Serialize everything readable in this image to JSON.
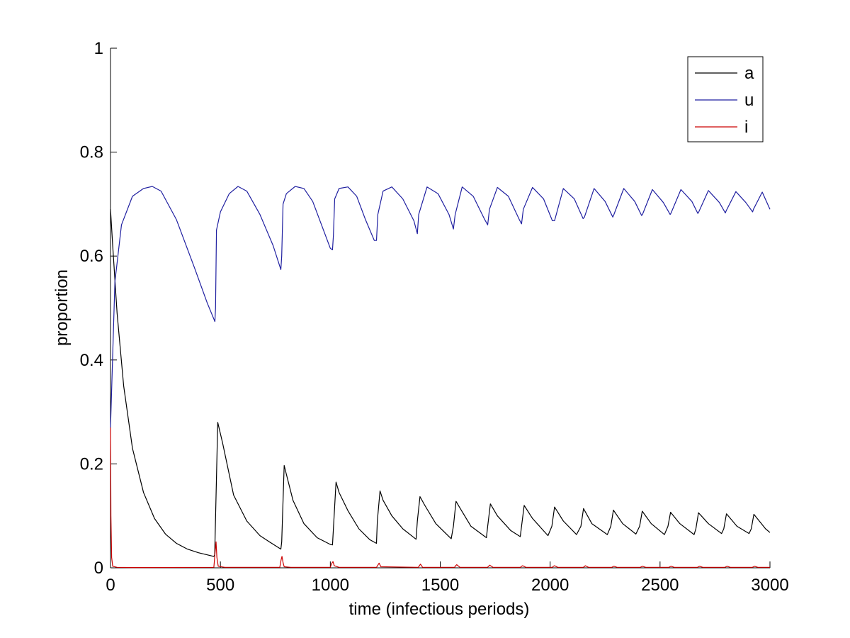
{
  "chart_data": {
    "type": "line",
    "title": "",
    "xlabel": "time (infectious periods)",
    "ylabel": "proportion",
    "xlim": [
      0,
      3000
    ],
    "ylim": [
      0,
      1
    ],
    "xticks": [
      0,
      500,
      1000,
      1500,
      2000,
      2500,
      3000
    ],
    "yticks": [
      0,
      0.2,
      0.4,
      0.6,
      0.8,
      1
    ],
    "xtick_labels": [
      "0",
      "500",
      "1000",
      "1500",
      "2000",
      "2500",
      "3000"
    ],
    "ytick_labels": [
      "0",
      "0.2",
      "0.4",
      "0.6",
      "0.8",
      "1"
    ],
    "grid": false,
    "legend_position": "top-right",
    "series": [
      {
        "name": "a",
        "color": "#000000",
        "x": [
          0,
          10,
          30,
          60,
          100,
          150,
          200,
          250,
          300,
          350,
          400,
          470,
          474,
          488,
          510,
          560,
          620,
          680,
          730,
          775,
          779,
          790,
          800,
          830,
          880,
          940,
          1000,
          1010,
          1016,
          1026,
          1040,
          1080,
          1130,
          1180,
          1210,
          1214,
          1226,
          1240,
          1280,
          1330,
          1390,
          1396,
          1408,
          1430,
          1480,
          1550,
          1560,
          1572,
          1590,
          1640,
          1710,
          1716,
          1728,
          1760,
          1820,
          1864,
          1870,
          1882,
          1920,
          1990,
          2008,
          2020,
          2060,
          2120,
          2140,
          2152,
          2190,
          2260,
          2276,
          2288,
          2330,
          2390,
          2407,
          2419,
          2460,
          2520,
          2536,
          2548,
          2590,
          2655,
          2663,
          2675,
          2720,
          2780,
          2790,
          2802,
          2850,
          2905,
          2915,
          2927,
          2980,
          3000
        ],
        "y": [
          0.69,
          0.62,
          0.49,
          0.35,
          0.23,
          0.145,
          0.095,
          0.065,
          0.047,
          0.036,
          0.029,
          0.022,
          0.025,
          0.28,
          0.24,
          0.14,
          0.09,
          0.062,
          0.048,
          0.036,
          0.05,
          0.197,
          0.18,
          0.13,
          0.085,
          0.058,
          0.045,
          0.044,
          0.09,
          0.165,
          0.145,
          0.11,
          0.075,
          0.054,
          0.047,
          0.09,
          0.148,
          0.13,
          0.1,
          0.075,
          0.055,
          0.09,
          0.137,
          0.12,
          0.085,
          0.056,
          0.08,
          0.128,
          0.115,
          0.08,
          0.058,
          0.08,
          0.123,
          0.1,
          0.072,
          0.06,
          0.08,
          0.12,
          0.095,
          0.062,
          0.08,
          0.117,
          0.09,
          0.064,
          0.08,
          0.114,
          0.085,
          0.064,
          0.08,
          0.111,
          0.085,
          0.065,
          0.08,
          0.109,
          0.085,
          0.064,
          0.08,
          0.107,
          0.085,
          0.064,
          0.075,
          0.106,
          0.085,
          0.066,
          0.075,
          0.104,
          0.08,
          0.066,
          0.075,
          0.103,
          0.075,
          0.068
        ]
      },
      {
        "name": "u",
        "color": "#1f1fa0",
        "x": [
          0,
          20,
          50,
          100,
          150,
          190,
          230,
          300,
          380,
          440,
          475,
          478,
          482,
          500,
          540,
          580,
          620,
          680,
          740,
          775,
          779,
          785,
          800,
          840,
          880,
          920,
          960,
          1000,
          1010,
          1014,
          1020,
          1040,
          1080,
          1120,
          1160,
          1200,
          1210,
          1216,
          1240,
          1280,
          1330,
          1380,
          1396,
          1402,
          1440,
          1490,
          1540,
          1560,
          1568,
          1600,
          1650,
          1700,
          1716,
          1724,
          1760,
          1810,
          1860,
          1870,
          1878,
          1920,
          1970,
          2010,
          2020,
          2060,
          2110,
          2150,
          2156,
          2200,
          2250,
          2285,
          2290,
          2335,
          2385,
          2416,
          2420,
          2465,
          2515,
          2546,
          2550,
          2595,
          2645,
          2672,
          2676,
          2720,
          2770,
          2797,
          2801,
          2845,
          2890,
          2921,
          2925,
          2965,
          3000
        ],
        "y": [
          0.27,
          0.55,
          0.66,
          0.715,
          0.73,
          0.734,
          0.725,
          0.67,
          0.58,
          0.51,
          0.474,
          0.5,
          0.65,
          0.685,
          0.72,
          0.734,
          0.725,
          0.68,
          0.62,
          0.574,
          0.6,
          0.7,
          0.72,
          0.734,
          0.73,
          0.705,
          0.66,
          0.615,
          0.612,
          0.64,
          0.71,
          0.73,
          0.733,
          0.715,
          0.67,
          0.63,
          0.63,
          0.68,
          0.725,
          0.733,
          0.71,
          0.668,
          0.643,
          0.68,
          0.733,
          0.72,
          0.68,
          0.652,
          0.68,
          0.733,
          0.715,
          0.672,
          0.66,
          0.69,
          0.732,
          0.715,
          0.67,
          0.662,
          0.69,
          0.732,
          0.71,
          0.668,
          0.668,
          0.73,
          0.71,
          0.672,
          0.675,
          0.73,
          0.705,
          0.675,
          0.68,
          0.73,
          0.705,
          0.678,
          0.68,
          0.728,
          0.703,
          0.68,
          0.683,
          0.728,
          0.705,
          0.682,
          0.685,
          0.726,
          0.703,
          0.683,
          0.687,
          0.724,
          0.703,
          0.685,
          0.69,
          0.723,
          0.69
        ]
      },
      {
        "name": "i",
        "color": "#cc0000",
        "x": [
          0,
          1,
          2,
          5,
          10,
          30,
          100,
          470,
          476,
          480,
          484,
          490,
          520,
          770,
          776,
          780,
          785,
          790,
          820,
          1000,
          1006,
          1012,
          1018,
          1040,
          1210,
          1216,
          1222,
          1230,
          1400,
          1405,
          1410,
          1420,
          1565,
          1570,
          1575,
          1590,
          1715,
          1720,
          1725,
          1740,
          1865,
          1870,
          1875,
          1890,
          2010,
          2015,
          2020,
          2035,
          2150,
          2155,
          2160,
          2175,
          2280,
          2285,
          2290,
          2305,
          2410,
          2415,
          2420,
          2435,
          2540,
          2545,
          2550,
          2565,
          2670,
          2675,
          2680,
          2695,
          2795,
          2800,
          2805,
          2820,
          2920,
          2925,
          2930,
          2945,
          3000
        ],
        "y": [
          0.27,
          0.2,
          0.1,
          0.02,
          0.003,
          0.001,
          0.0005,
          0.001,
          0.03,
          0.05,
          0.02,
          0.003,
          0.001,
          0.001,
          0.015,
          0.022,
          0.01,
          0.002,
          0.001,
          0.001,
          0.008,
          0.012,
          0.004,
          0.001,
          0.001,
          0.005,
          0.009,
          0.002,
          0.001,
          0.004,
          0.007,
          0.001,
          0.001,
          0.004,
          0.006,
          0.001,
          0.001,
          0.003,
          0.005,
          0.001,
          0.001,
          0.003,
          0.004,
          0.001,
          0.001,
          0.003,
          0.004,
          0.001,
          0.001,
          0.002,
          0.004,
          0.001,
          0.001,
          0.002,
          0.003,
          0.001,
          0.001,
          0.002,
          0.003,
          0.001,
          0.001,
          0.002,
          0.003,
          0.001,
          0.001,
          0.002,
          0.003,
          0.001,
          0.001,
          0.002,
          0.003,
          0.001,
          0.001,
          0.002,
          0.003,
          0.001,
          0.001
        ]
      }
    ]
  }
}
